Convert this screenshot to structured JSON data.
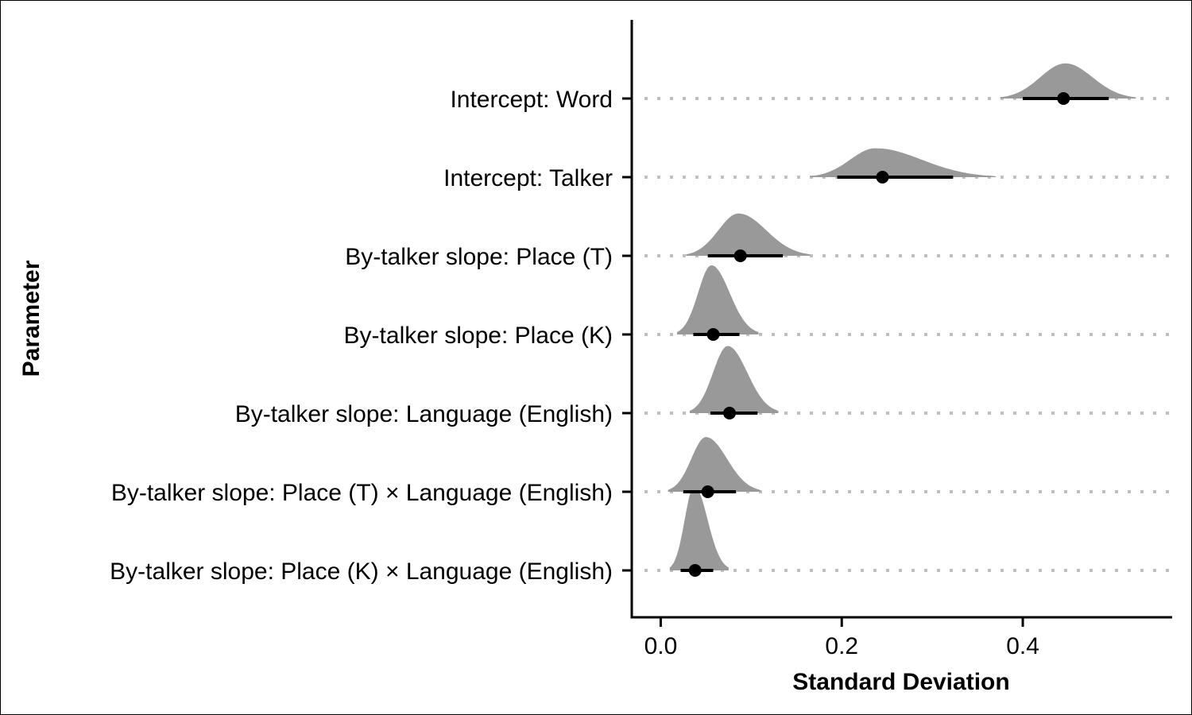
{
  "chart_data": {
    "type": "ridge-interval",
    "title": "",
    "xlabel": "Standard Deviation",
    "ylabel": "Parameter",
    "xlim": [
      -0.032,
      0.565
    ],
    "x_ticks": [
      0.0,
      0.2,
      0.4
    ],
    "x_tick_labels": [
      "0.0",
      "0.2",
      "0.4"
    ],
    "grid": "dotted horizontal guide per parameter",
    "colors": {
      "density": "#999999",
      "interval": "#000000",
      "point": "#000000",
      "guide": "#bfbfbf"
    },
    "parameters": [
      {
        "label": "Intercept: Word",
        "median": 0.445,
        "interval": [
          0.4,
          0.495
        ],
        "density_range": [
          0.375,
          0.525
        ],
        "density_peak": 0.447,
        "density_height": 0.34
      },
      {
        "label": "Intercept: Talker",
        "median": 0.245,
        "interval": [
          0.195,
          0.323
        ],
        "density_range": [
          0.165,
          0.37
        ],
        "density_peak": 0.237,
        "density_height": 0.28
      },
      {
        "label": "By-talker slope: Place (T)",
        "median": 0.088,
        "interval": [
          0.052,
          0.135
        ],
        "density_range": [
          0.028,
          0.165
        ],
        "density_peak": 0.086,
        "density_height": 0.41
      },
      {
        "label": "By-talker slope: Place (K)",
        "median": 0.058,
        "interval": [
          0.036,
          0.087
        ],
        "density_range": [
          0.018,
          0.108
        ],
        "density_peak": 0.056,
        "density_height": 0.67
      },
      {
        "label": "By-talker slope: Language (English)",
        "median": 0.076,
        "interval": [
          0.055,
          0.107
        ],
        "density_range": [
          0.032,
          0.13
        ],
        "density_peak": 0.074,
        "density_height": 0.65
      },
      {
        "label": "By-talker slope: Place (T) × Language (English)",
        "median": 0.052,
        "interval": [
          0.025,
          0.083
        ],
        "density_range": [
          0.008,
          0.11
        ],
        "density_peak": 0.05,
        "density_height": 0.53
      },
      {
        "label": "By-talker slope: Place (K) × Language (English)",
        "median": 0.038,
        "interval": [
          0.022,
          0.058
        ],
        "density_range": [
          0.01,
          0.075
        ],
        "density_peak": 0.037,
        "density_height": 0.82
      }
    ]
  }
}
